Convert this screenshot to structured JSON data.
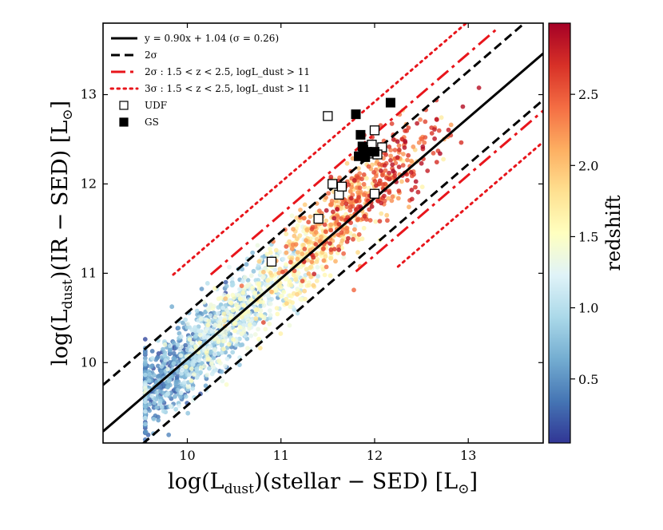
{
  "chart_data": {
    "type": "scatter",
    "title": "",
    "xlabel": "log(L_dust)(stellar − SED) [L⊙]",
    "ylabel": "log(L_dust)(IR − SED) [L⊙]",
    "xlabel_main": "log(L",
    "xlabel_sub": "dust",
    "xlabel_rest": ")(stellar − SED) [L",
    "ylabel_main": "log(L",
    "ylabel_sub": "dust",
    "ylabel_rest": ")(IR − SED) [L",
    "sun_symbol": "⊙",
    "close_bracket": "]",
    "xlim": [
      9.1,
      13.8
    ],
    "ylim": [
      9.1,
      13.8
    ],
    "xticks": [
      10,
      11,
      12,
      13
    ],
    "yticks": [
      10,
      11,
      12,
      13
    ],
    "xtick_labels": [
      "10",
      "11",
      "12",
      "13"
    ],
    "ytick_labels": [
      "10",
      "11",
      "12",
      "13"
    ],
    "fit": {
      "slope": 0.9,
      "intercept": 1.04,
      "sigma": 0.26
    },
    "lines": [
      {
        "name": "y = 0.90x + 1.04 (σ = 0.26)",
        "style": "solid",
        "color": "#000000",
        "slope": 0.9,
        "intercept": 1.04,
        "x_range": [
          9.1,
          13.8
        ]
      },
      {
        "name": "2σ upper",
        "style": "dashed",
        "color": "#000000",
        "slope": 0.9,
        "intercept": 1.56,
        "x_range": [
          9.1,
          13.6
        ]
      },
      {
        "name": "2σ lower",
        "style": "dashed",
        "color": "#000000",
        "slope": 0.9,
        "intercept": 0.52,
        "x_range": [
          9.3,
          13.8
        ]
      },
      {
        "name": "2σ (1.5<z<2.5) upper",
        "style": "dashdot",
        "color": "#e8151b",
        "slope": 0.9,
        "intercept": 1.76,
        "x_range": [
          10.25,
          13.3
        ]
      },
      {
        "name": "2σ (1.5<z<2.5) lower",
        "style": "dashdot",
        "color": "#e8151b",
        "slope": 0.9,
        "intercept": 0.4,
        "x_range": [
          11.8,
          13.8
        ]
      },
      {
        "name": "3σ (1.5<z<2.5) upper",
        "style": "dotted",
        "color": "#e8151b",
        "slope": 0.9,
        "intercept": 2.12,
        "x_range": [
          9.85,
          13.5
        ]
      },
      {
        "name": "3σ (1.5<z<2.5) lower",
        "style": "dotted",
        "color": "#e8151b",
        "slope": 0.9,
        "intercept": 0.05,
        "x_range": [
          12.25,
          13.8
        ]
      }
    ],
    "legend": {
      "position": "top-left",
      "entries": [
        {
          "style": "solid",
          "color": "#000000",
          "label": "y = 0.90x + 1.04 (σ = 0.26)"
        },
        {
          "style": "dashed",
          "color": "#000000",
          "label": "2σ"
        },
        {
          "style": "dashdot",
          "color": "#e8151b",
          "label": "2σ :  1.5 < z < 2.5, logL_dust > 11"
        },
        {
          "style": "dotted",
          "color": "#e8151b",
          "label": "3σ :  1.5 < z < 2.5, logL_dust > 11"
        },
        {
          "style": "open-square",
          "color": "#000000",
          "label": "UDF"
        },
        {
          "style": "filled-square",
          "color": "#000000",
          "label": "GS"
        }
      ]
    },
    "udf_points": [
      [
        11.5,
        12.76
      ],
      [
        10.9,
        11.13
      ],
      [
        11.4,
        11.61
      ],
      [
        11.55,
        12.0
      ],
      [
        11.62,
        11.88
      ],
      [
        11.65,
        11.97
      ],
      [
        12.0,
        11.89
      ],
      [
        12.0,
        12.6
      ],
      [
        12.08,
        12.41
      ],
      [
        12.03,
        12.33
      ],
      [
        11.93,
        12.34
      ],
      [
        11.97,
        12.44
      ]
    ],
    "gs_points": [
      [
        11.8,
        12.78
      ],
      [
        11.85,
        12.55
      ],
      [
        12.17,
        12.91
      ],
      [
        11.87,
        12.42
      ],
      [
        11.88,
        12.38
      ],
      [
        11.92,
        12.36
      ],
      [
        12.0,
        12.36
      ],
      [
        11.83,
        12.31
      ],
      [
        11.9,
        12.3
      ]
    ],
    "scatter_description": "Approximately 2000 galaxies, colour-coded by redshift; generated here as a representative sample following the fitted relation",
    "scatter_sample": {
      "count": 2000,
      "seed": 7
    },
    "colorbar": {
      "label": "redshift",
      "range": [
        0.05,
        3.0
      ],
      "ticks": [
        0.5,
        1.0,
        1.5,
        2.0,
        2.5
      ],
      "tick_labels": [
        "0.5",
        "1.0",
        "1.5",
        "2.0",
        "2.5"
      ],
      "colormap": "RdYlBu_r",
      "colors": [
        "#313695",
        "#4575b4",
        "#74add1",
        "#abd9e9",
        "#e0f3f8",
        "#ffffbf",
        "#fee090",
        "#fdae61",
        "#f46d43",
        "#d73027",
        "#a50026"
      ]
    }
  }
}
